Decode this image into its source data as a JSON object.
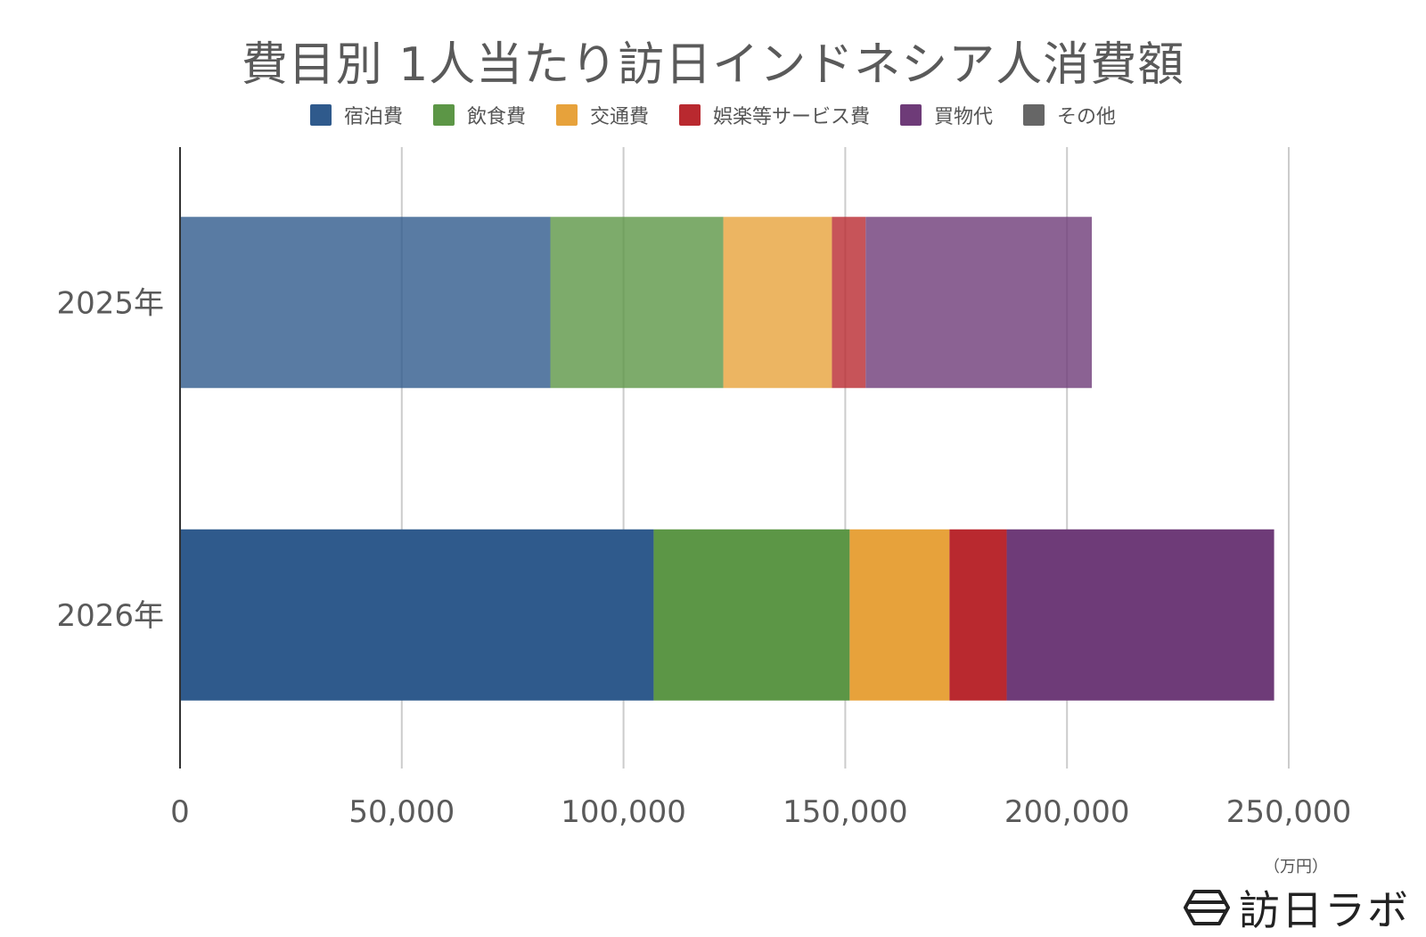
{
  "chart_data": {
    "type": "bar",
    "orientation": "horizontal",
    "stacked": true,
    "title": "費目別 1人当たり訪日インドネシア人消費額",
    "categories": [
      "2025年",
      "2026年"
    ],
    "series": [
      {
        "name": "宿泊費",
        "color": "#2f5a8c",
        "values": [
          83500,
          106800
        ]
      },
      {
        "name": "飲食費",
        "color": "#5c9646",
        "values": [
          39000,
          44200
        ]
      },
      {
        "name": "交通費",
        "color": "#e7a23b",
        "values": [
          24500,
          22500
        ]
      },
      {
        "name": "娯楽等サービス費",
        "color": "#b9292f",
        "values": [
          7600,
          12900
        ]
      },
      {
        "name": "買物代",
        "color": "#6e3b78",
        "values": [
          51000,
          60300
        ]
      },
      {
        "name": "その他",
        "color": "#666666",
        "values": [
          0,
          0
        ]
      }
    ],
    "xlim": [
      0,
      250000
    ],
    "xticks": [
      "0",
      "50,000",
      "100,000",
      "150,000",
      "200,000",
      "250,000"
    ],
    "xunit": "（万円）",
    "grid": true,
    "legend_position": "top"
  },
  "brand": {
    "text": "訪日ラボ"
  }
}
